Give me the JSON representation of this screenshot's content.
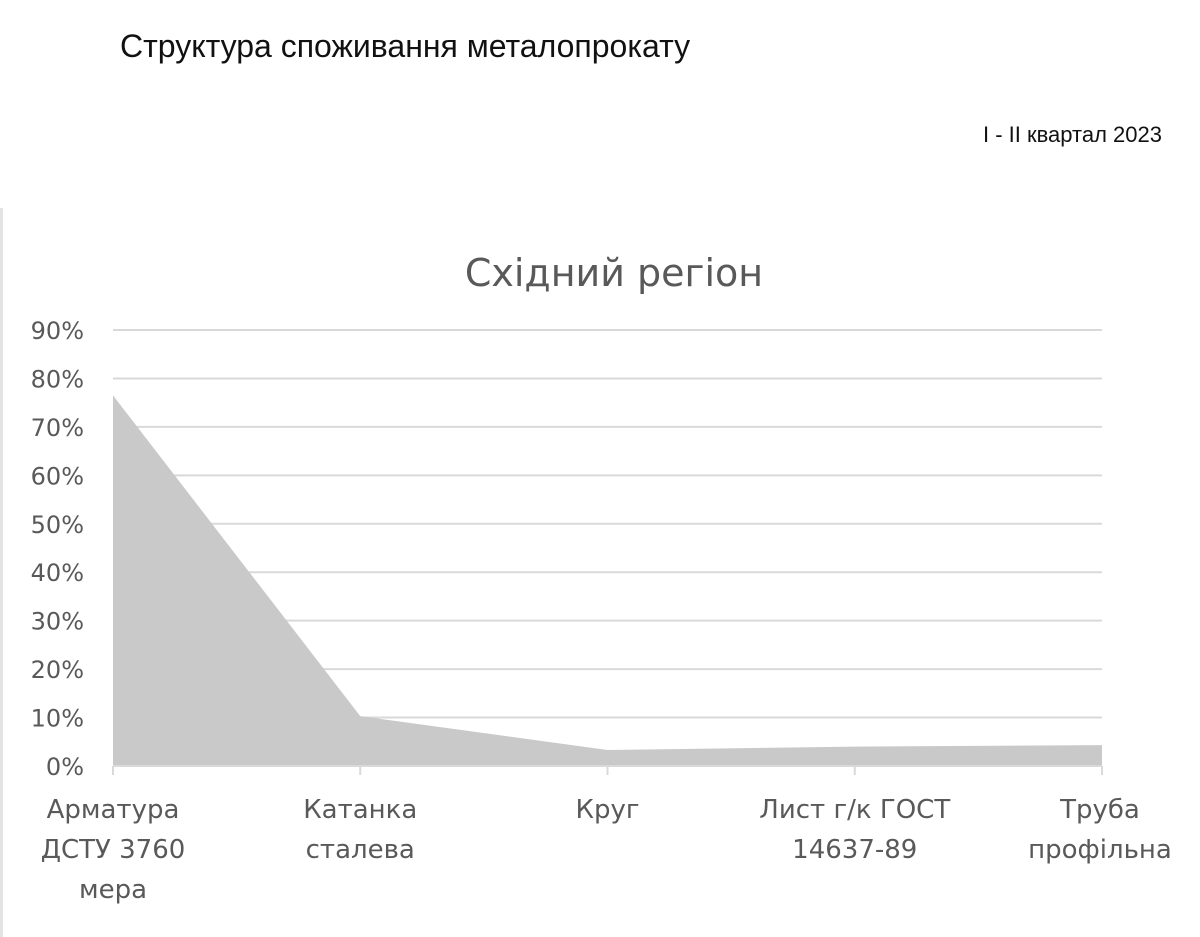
{
  "page": {
    "title": "Структура споживання металопрокату",
    "subtitle": "I - II квартал 2023"
  },
  "colors": {
    "area_fill": "#c9c9c9",
    "gridline": "#d9d9d9",
    "text": "#595959"
  },
  "chart_data": {
    "type": "area",
    "title": "Східний регіон",
    "categories": [
      [
        "Арматура",
        "ДСТУ 3760",
        "мера"
      ],
      [
        "Катанка",
        "сталева"
      ],
      [
        "Круг"
      ],
      [
        "Лист г/к ГОСТ",
        "14637-89"
      ],
      [
        "Труба",
        "профільна"
      ]
    ],
    "series": [
      {
        "values": [
          0.765,
          0.103,
          0.033,
          0.04,
          0.043
        ]
      }
    ],
    "ylim": [
      0,
      0.9
    ],
    "y_ticks": [
      "0%",
      "10%",
      "20%",
      "30%",
      "40%",
      "50%",
      "60%",
      "70%",
      "80%",
      "90%"
    ],
    "grid": true,
    "legend": "none"
  }
}
